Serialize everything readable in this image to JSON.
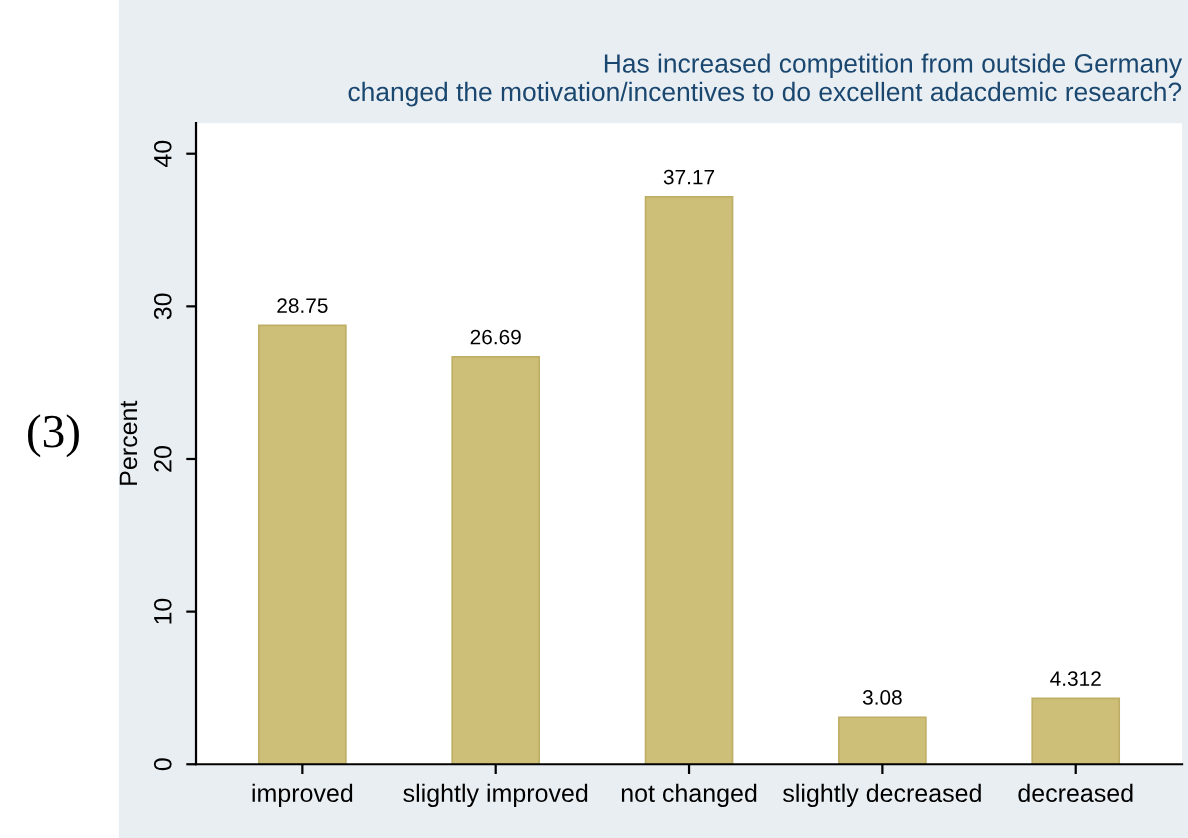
{
  "chart_data": {
    "type": "bar",
    "title": "Has increased competition from outside Germany\nchanged the motivation/incentives to do excellent adacdemic research?",
    "ylabel": "Percent",
    "categories": [
      "improved",
      "slightly improved",
      "not changed",
      "slightly decreased",
      "decreased"
    ],
    "values": [
      28.75,
      26.69,
      37.17,
      3.08,
      4.312
    ],
    "color": "#cdbe78",
    "data_labels": true,
    "ylim": [
      0,
      42
    ],
    "yticks": [
      0,
      10,
      20,
      30,
      40
    ],
    "annotations": [
      "(3)"
    ]
  }
}
